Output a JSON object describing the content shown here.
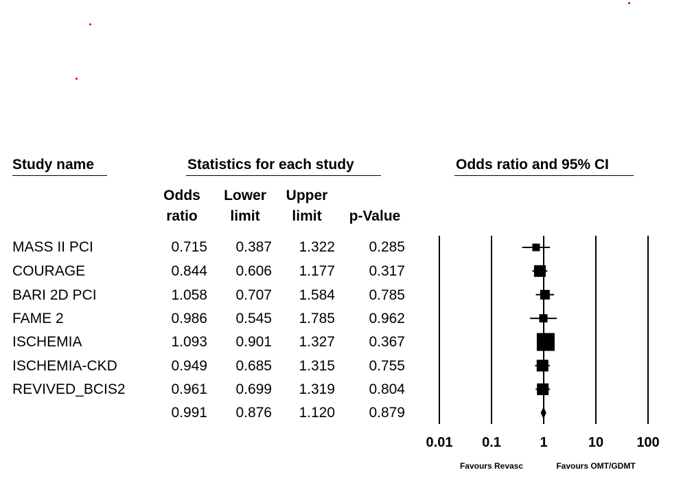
{
  "headers": {
    "study_name": "Study name",
    "statistics": "Statistics for each study",
    "plot_title": "Odds ratio and 95% CI"
  },
  "columns": {
    "odds_ratio": [
      "Odds",
      "ratio"
    ],
    "lower_limit": [
      "Lower",
      "limit"
    ],
    "upper_limit": [
      "Upper",
      "limit"
    ],
    "p_value": [
      "p-Value"
    ]
  },
  "rows": [
    {
      "name": "MASS II PCI",
      "or": "0.715",
      "lower": "0.387",
      "upper": "1.322",
      "p": "0.285"
    },
    {
      "name": "COURAGE",
      "or": "0.844",
      "lower": "0.606",
      "upper": "1.177",
      "p": "0.317"
    },
    {
      "name": "BARI 2D PCI",
      "or": "1.058",
      "lower": "0.707",
      "upper": "1.584",
      "p": "0.785"
    },
    {
      "name": "FAME 2",
      "or": "0.986",
      "lower": "0.545",
      "upper": "1.785",
      "p": "0.962"
    },
    {
      "name": "ISCHEMIA",
      "or": "1.093",
      "lower": "0.901",
      "upper": "1.327",
      "p": "0.367"
    },
    {
      "name": "ISCHEMIA-CKD",
      "or": "0.949",
      "lower": "0.685",
      "upper": "1.315",
      "p": "0.755"
    },
    {
      "name": "REVIVED_BCIS2",
      "or": "0.961",
      "lower": "0.699",
      "upper": "1.319",
      "p": "0.804"
    },
    {
      "name": "",
      "or": "0.991",
      "lower": "0.876",
      "upper": "1.120",
      "p": "0.879"
    }
  ],
  "chart_data": {
    "type": "forest",
    "scale": "log",
    "xlim": [
      0.01,
      100
    ],
    "ticks": [
      0.01,
      0.1,
      1,
      10,
      100
    ],
    "tick_labels": [
      "0.01",
      "0.1",
      "1",
      "10",
      "100"
    ],
    "favours_left": "Favours Revasc",
    "favours_right": "Favours OMT/GDMT",
    "studies": [
      {
        "name": "MASS II PCI",
        "or": 0.715,
        "lower": 0.387,
        "upper": 1.322,
        "weight": 0.25
      },
      {
        "name": "COURAGE",
        "or": 0.844,
        "lower": 0.606,
        "upper": 1.177,
        "weight": 0.55
      },
      {
        "name": "BARI 2D PCI",
        "or": 1.058,
        "lower": 0.707,
        "upper": 1.584,
        "weight": 0.4
      },
      {
        "name": "FAME 2",
        "or": 0.986,
        "lower": 0.545,
        "upper": 1.785,
        "weight": 0.3
      },
      {
        "name": "ISCHEMIA",
        "or": 1.093,
        "lower": 0.901,
        "upper": 1.327,
        "weight": 1.0
      },
      {
        "name": "ISCHEMIA-CKD",
        "or": 0.949,
        "lower": 0.685,
        "upper": 1.315,
        "weight": 0.55
      },
      {
        "name": "REVIVED_BCIS2",
        "or": 0.961,
        "lower": 0.699,
        "upper": 1.319,
        "weight": 0.55
      }
    ],
    "summary": {
      "or": 0.991,
      "lower": 0.876,
      "upper": 1.12
    }
  }
}
